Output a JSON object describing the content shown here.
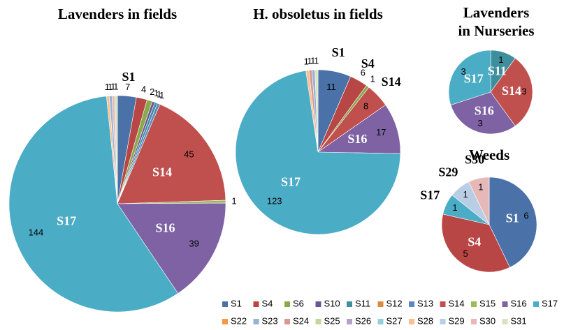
{
  "chart_data": [
    {
      "type": "pie",
      "title": [
        "Lavenders in fields"
      ],
      "categories": [
        "S1",
        "S4",
        "S6",
        "S10",
        "S11",
        "S13",
        "S14",
        "S15",
        "S16",
        "S17",
        "S28",
        "S23",
        "S30",
        "S31"
      ],
      "values": [
        7,
        4,
        2,
        1,
        1,
        1,
        45,
        1,
        39,
        144,
        1,
        1,
        1,
        1
      ],
      "labeled": [
        "S1",
        "S14",
        "S16",
        "S17"
      ]
    },
    {
      "type": "pie",
      "title": [
        "H. obsoletus in fields"
      ],
      "categories": [
        "S1",
        "S4",
        "S6",
        "S14",
        "S16",
        "S17",
        "S28",
        "S24",
        "S23",
        "S31"
      ],
      "values": [
        11,
        6,
        1,
        8,
        17,
        123,
        1,
        1,
        1,
        1
      ],
      "labeled": [
        "S1",
        "S4",
        "S14",
        "S16",
        "S17"
      ]
    },
    {
      "type": "pie",
      "title": [
        "Lavenders",
        "in Nurseries"
      ],
      "categories": [
        "S11",
        "S14",
        "S16",
        "S17"
      ],
      "values": [
        1,
        3,
        3,
        3
      ],
      "labeled": [
        "S11",
        "S14",
        "S16",
        "S17"
      ]
    },
    {
      "type": "pie",
      "title": [
        "Weeds"
      ],
      "categories": [
        "S1",
        "S4",
        "S17",
        "S29",
        "S30"
      ],
      "values": [
        6,
        5,
        1,
        1,
        1
      ],
      "labeled": [
        "S1",
        "S4",
        "S17",
        "S29",
        "S30"
      ]
    }
  ],
  "legend": [
    {
      "name": "S1",
      "color": "#4a72a8"
    },
    {
      "name": "S4",
      "color": "#b84645"
    },
    {
      "name": "S6",
      "color": "#8aa94a"
    },
    {
      "name": "S10",
      "color": "#6e5596"
    },
    {
      "name": "S11",
      "color": "#3e8f9e"
    },
    {
      "name": "S12",
      "color": "#e28a3c"
    },
    {
      "name": "S13",
      "color": "#5b86c2"
    },
    {
      "name": "S14",
      "color": "#c0504d"
    },
    {
      "name": "S15",
      "color": "#9bbb59"
    },
    {
      "name": "S16",
      "color": "#7e62a4"
    },
    {
      "name": "S17",
      "color": "#4bacc6"
    },
    {
      "name": "S22",
      "color": "#f79646"
    },
    {
      "name": "S23",
      "color": "#95b3d7"
    },
    {
      "name": "S24",
      "color": "#d99694"
    },
    {
      "name": "S25",
      "color": "#c3d69b"
    },
    {
      "name": "S26",
      "color": "#b3a2c7"
    },
    {
      "name": "S27",
      "color": "#93cddd"
    },
    {
      "name": "S28",
      "color": "#fac090"
    },
    {
      "name": "S29",
      "color": "#b9cde5"
    },
    {
      "name": "S30",
      "color": "#e6b9b8"
    },
    {
      "name": "S31",
      "color": "#d7e4bd"
    }
  ]
}
